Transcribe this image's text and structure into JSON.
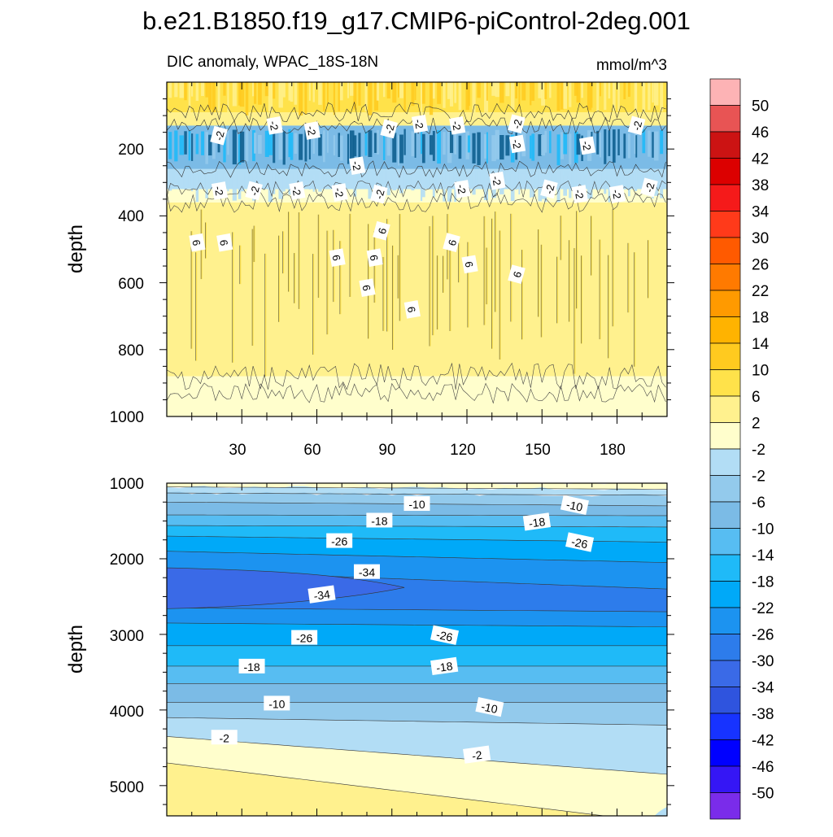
{
  "title": "b.e21.B1850.f19_g17.CMIP6-piControl-2deg.001",
  "chart_data": [
    {
      "type": "heatmap",
      "panel": "upper",
      "subtitle_left": "DIC anomaly, WPAC_18S-18N",
      "subtitle_right": "mmol/m^3",
      "ylabel": "depth",
      "xlabel": "",
      "xlim": [
        0,
        200
      ],
      "ylim": [
        0,
        1000
      ],
      "y_inverted": true,
      "x_ticks": [
        "30",
        "60",
        "90",
        "120",
        "150",
        "180"
      ],
      "y_ticks": [
        "200",
        "400",
        "600",
        "800",
        "1000"
      ],
      "bands": [
        {
          "depth_top": 0,
          "depth_bottom": 90,
          "value": 8
        },
        {
          "depth_top": 90,
          "depth_bottom": 130,
          "value": 2
        },
        {
          "depth_top": 130,
          "depth_bottom": 260,
          "value": -14
        },
        {
          "depth_top": 260,
          "depth_bottom": 320,
          "value": -4
        },
        {
          "depth_top": 320,
          "depth_bottom": 360,
          "value": 0
        },
        {
          "depth_top": 360,
          "depth_bottom": 880,
          "value": 4
        },
        {
          "depth_top": 880,
          "depth_bottom": 1000,
          "value": 0
        }
      ],
      "contour_labels": [
        {
          "text": "-2",
          "x": 21,
          "depth": 160
        },
        {
          "text": "-2",
          "x": 43,
          "depth": 130
        },
        {
          "text": "-2",
          "x": 58,
          "depth": 145
        },
        {
          "text": "-2",
          "x": 89,
          "depth": 140
        },
        {
          "text": "-2",
          "x": 101,
          "depth": 125
        },
        {
          "text": "-2",
          "x": 116,
          "depth": 130
        },
        {
          "text": "-2",
          "x": 140,
          "depth": 125
        },
        {
          "text": "-2",
          "x": 140,
          "depth": 185
        },
        {
          "text": "-2",
          "x": 168,
          "depth": 190
        },
        {
          "text": "-2",
          "x": 188,
          "depth": 130
        },
        {
          "text": "-2",
          "x": 76,
          "depth": 250
        },
        {
          "text": "-2",
          "x": 21,
          "depth": 325
        },
        {
          "text": "-2",
          "x": 35,
          "depth": 325
        },
        {
          "text": "-2",
          "x": 52,
          "depth": 325
        },
        {
          "text": "-2",
          "x": 69,
          "depth": 330
        },
        {
          "text": "-2",
          "x": 85,
          "depth": 335
        },
        {
          "text": "-2",
          "x": 118,
          "depth": 320
        },
        {
          "text": "-2",
          "x": 132,
          "depth": 295
        },
        {
          "text": "-2",
          "x": 153,
          "depth": 320
        },
        {
          "text": "-2",
          "x": 165,
          "depth": 335
        },
        {
          "text": "-2",
          "x": 180,
          "depth": 335
        },
        {
          "text": "-2",
          "x": 193,
          "depth": 315
        },
        {
          "text": "6",
          "x": 12,
          "depth": 480
        },
        {
          "text": "6",
          "x": 23,
          "depth": 480
        },
        {
          "text": "6",
          "x": 86,
          "depth": 445
        },
        {
          "text": "6",
          "x": 68,
          "depth": 525
        },
        {
          "text": "6",
          "x": 83,
          "depth": 525
        },
        {
          "text": "6",
          "x": 114,
          "depth": 480
        },
        {
          "text": "6",
          "x": 121,
          "depth": 545
        },
        {
          "text": "6",
          "x": 80,
          "depth": 615
        },
        {
          "text": "6",
          "x": 140,
          "depth": 575
        },
        {
          "text": "6",
          "x": 98,
          "depth": 680
        }
      ]
    },
    {
      "type": "heatmap",
      "panel": "lower",
      "ylabel": "depth",
      "xlim": [
        0,
        200
      ],
      "ylim": [
        1000,
        5400
      ],
      "y_inverted": true,
      "y_ticks": [
        "1000",
        "2000",
        "3000",
        "4000",
        "5000"
      ],
      "contour_labels": [
        {
          "text": "-10",
          "x": 100,
          "depth": 1280
        },
        {
          "text": "-10",
          "x": 163,
          "depth": 1300
        },
        {
          "text": "-18",
          "x": 85,
          "depth": 1500
        },
        {
          "text": "-18",
          "x": 148,
          "depth": 1520
        },
        {
          "text": "-26",
          "x": 69,
          "depth": 1770
        },
        {
          "text": "-26",
          "x": 165,
          "depth": 1790
        },
        {
          "text": "-34",
          "x": 80,
          "depth": 2180
        },
        {
          "text": "-34",
          "x": 62,
          "depth": 2480
        },
        {
          "text": "-26",
          "x": 55,
          "depth": 3050
        },
        {
          "text": "-26",
          "x": 111,
          "depth": 3020
        },
        {
          "text": "-18",
          "x": 34,
          "depth": 3430
        },
        {
          "text": "-18",
          "x": 111,
          "depth": 3430
        },
        {
          "text": "-10",
          "x": 44,
          "depth": 3920
        },
        {
          "text": "-10",
          "x": 129,
          "depth": 3970
        },
        {
          "text": "-2",
          "x": 23,
          "depth": 4370
        },
        {
          "text": "-2",
          "x": 124,
          "depth": 4600
        }
      ]
    }
  ],
  "colorbar": {
    "levels": [
      "50",
      "46",
      "42",
      "38",
      "34",
      "30",
      "26",
      "22",
      "18",
      "14",
      "10",
      "6",
      "2",
      "-2",
      "-2",
      "-6",
      "-10",
      "-14",
      "-18",
      "-22",
      "-26",
      "-30",
      "-34",
      "-38",
      "-42",
      "-46",
      "-50"
    ],
    "colors": [
      "#FDB3B5",
      "#E85454",
      "#CC1313",
      "#DC0000",
      "#F51A1A",
      "#FF3A1A",
      "#FF5A00",
      "#FF7A00",
      "#FF9A00",
      "#FFB300",
      "#FFCA1F",
      "#FFE24A",
      "#FFF18E",
      "#FFFECC",
      "#B2DDF5",
      "#93CAEC",
      "#7BBBE6",
      "#57BDF2",
      "#1FBAF8",
      "#00A9F8",
      "#1C93F0",
      "#2D7CEB",
      "#3A6AE7",
      "#2F54DE",
      "#1733FF",
      "#0000FF",
      "#3516F5",
      "#7A2CEA"
    ]
  },
  "lower_colors": {
    "c_m2": "#FFFECC",
    "c_2": "#FFF18E",
    "c_m6": "#B2DDF5",
    "c_m10": "#93CAEC",
    "c_m14": "#7BBBE6",
    "c_m18": "#57BDF2",
    "c_m22": "#1FBAF8",
    "c_m26": "#00A9F8",
    "c_m30": "#1C93F0",
    "c_m34": "#2D7CEB",
    "c_m38": "#3A6AE7"
  }
}
